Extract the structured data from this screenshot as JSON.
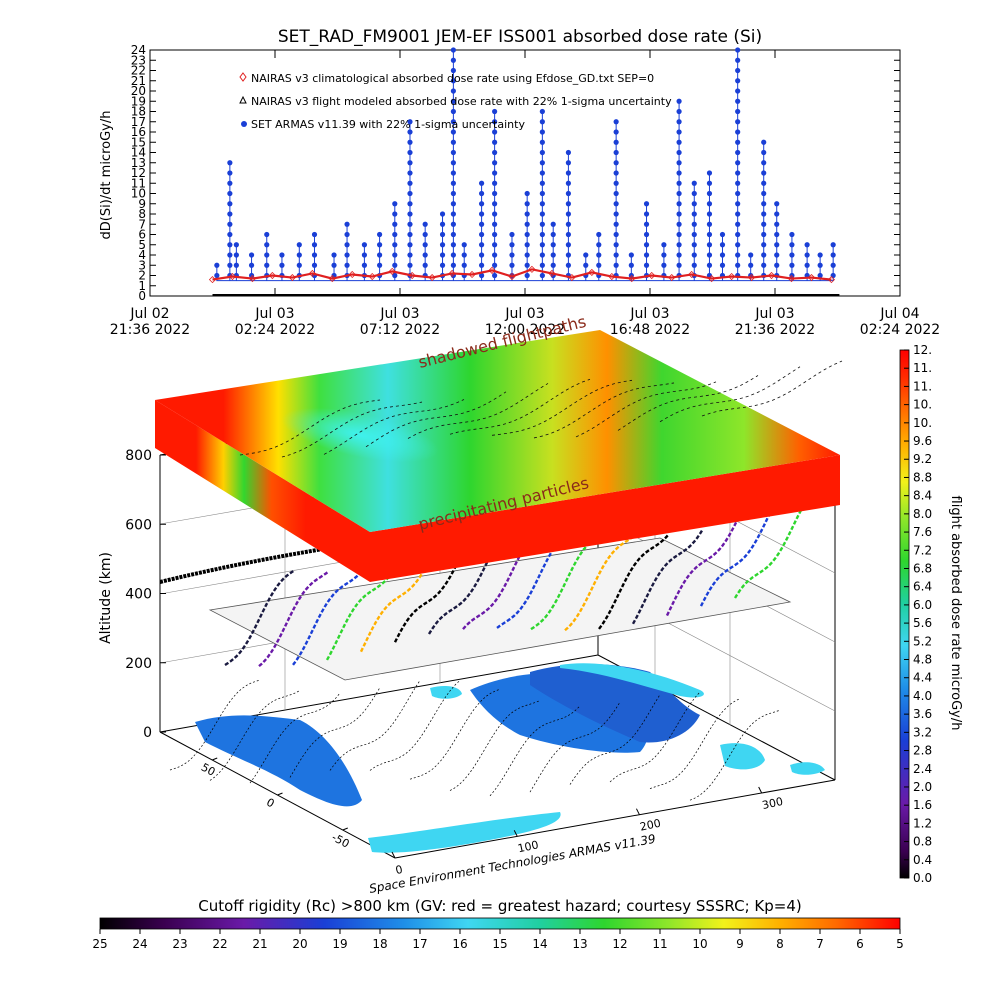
{
  "chart_data": [
    {
      "type": "line",
      "title": "SET_RAD_FM9001  JEM-EF ISS001 absorbed dose rate (Si)",
      "ylabel": "dD(Si)/dt microGy/h",
      "ylim": [
        0,
        24
      ],
      "y_ticks": [
        0,
        1,
        2,
        3,
        4,
        5,
        6,
        7,
        8,
        9,
        10,
        11,
        12,
        13,
        14,
        15,
        16,
        17,
        18,
        19,
        20,
        21,
        22,
        23,
        24
      ],
      "xlim": [
        "2022-07-02T21:36",
        "2022-07-04T02:24"
      ],
      "x_ticks": [
        {
          "t": "2022-07-02T21:36",
          "line1": "Jul 02",
          "line2": "21:36 2022"
        },
        {
          "t": "2022-07-03T02:24",
          "line1": "Jul 03",
          "line2": "02:24 2022"
        },
        {
          "t": "2022-07-03T07:12",
          "line1": "Jul 03",
          "line2": "07:12 2022"
        },
        {
          "t": "2022-07-03T12:00",
          "line1": "Jul 03",
          "line2": "12:00 2022"
        },
        {
          "t": "2022-07-03T16:48",
          "line1": "Jul 03",
          "line2": "16:48 2022"
        },
        {
          "t": "2022-07-03T21:36",
          "line1": "Jul 03",
          "line2": "21:36 2022"
        },
        {
          "t": "2022-07-04T02:24",
          "line1": "Jul 04",
          "line2": "02:24 2022"
        }
      ],
      "legend": [
        {
          "text": "NAIRAS v3 climatological absorbed dose rate using Efdose_GD.txt SEP=0",
          "color": "#e02020",
          "marker": "diamond"
        },
        {
          "text": "NAIRAS v3 flight modeled absorbed dose rate with 22% 1-sigma uncertainty",
          "color": "#000000",
          "marker": "triangle"
        },
        {
          "text": "SET ARMAS v11.39 with 22% 1-sigma uncertainty",
          "color": "#1a3fd6",
          "marker": "dot"
        }
      ],
      "legend_position": "top-left",
      "series": [
        {
          "color": "#e02020",
          "x": [
            "2022-07-03T00:00",
            "2022-07-03T00:46",
            "2022-07-03T01:32",
            "2022-07-03T02:18",
            "2022-07-03T03:04",
            "2022-07-03T03:50",
            "2022-07-03T04:36",
            "2022-07-03T05:22",
            "2022-07-03T06:08",
            "2022-07-03T06:54",
            "2022-07-03T07:40",
            "2022-07-03T08:26",
            "2022-07-03T09:12",
            "2022-07-03T09:58",
            "2022-07-03T10:44",
            "2022-07-03T11:30",
            "2022-07-03T12:16",
            "2022-07-03T13:02",
            "2022-07-03T13:48",
            "2022-07-03T14:34",
            "2022-07-03T15:20",
            "2022-07-03T16:06",
            "2022-07-03T16:52",
            "2022-07-03T17:38",
            "2022-07-03T18:24",
            "2022-07-03T19:10",
            "2022-07-03T19:56",
            "2022-07-03T20:42",
            "2022-07-03T21:28",
            "2022-07-03T22:14",
            "2022-07-03T23:00",
            "2022-07-03T23:46"
          ],
          "values": [
            1.6,
            1.9,
            1.7,
            2.0,
            1.8,
            2.2,
            1.7,
            2.1,
            1.9,
            2.4,
            2.0,
            1.8,
            2.2,
            2.1,
            2.5,
            1.9,
            2.6,
            2.2,
            1.8,
            2.3,
            1.9,
            1.7,
            2.0,
            1.8,
            2.1,
            1.7,
            1.9,
            1.8,
            2.0,
            1.7,
            1.8,
            1.6
          ]
        },
        {
          "color": "#1a3fd6",
          "x": [
            "2022-07-03T00:10",
            "2022-07-03T00:40",
            "2022-07-03T00:55",
            "2022-07-03T01:30",
            "2022-07-03T02:05",
            "2022-07-03T02:40",
            "2022-07-03T03:20",
            "2022-07-03T03:55",
            "2022-07-03T04:40",
            "2022-07-03T05:10",
            "2022-07-03T05:50",
            "2022-07-03T06:25",
            "2022-07-03T07:00",
            "2022-07-03T07:35",
            "2022-07-03T08:10",
            "2022-07-03T08:50",
            "2022-07-03T09:15",
            "2022-07-03T09:40",
            "2022-07-03T10:20",
            "2022-07-03T10:50",
            "2022-07-03T11:30",
            "2022-07-03T12:05",
            "2022-07-03T12:40",
            "2022-07-03T13:05",
            "2022-07-03T13:40",
            "2022-07-03T14:20",
            "2022-07-03T14:50",
            "2022-07-03T15:30",
            "2022-07-03T16:05",
            "2022-07-03T16:40",
            "2022-07-03T17:20",
            "2022-07-03T17:55",
            "2022-07-03T18:30",
            "2022-07-03T19:05",
            "2022-07-03T19:35",
            "2022-07-03T20:10",
            "2022-07-03T20:40",
            "2022-07-03T21:10",
            "2022-07-03T21:40",
            "2022-07-03T22:15",
            "2022-07-03T22:50",
            "2022-07-03T23:20",
            "2022-07-03T23:50"
          ],
          "values": [
            3,
            13,
            5,
            4,
            6,
            4,
            5,
            6,
            4,
            7,
            5,
            6,
            9,
            17,
            7,
            8,
            24,
            5,
            11,
            18,
            6,
            10,
            18,
            7,
            14,
            4,
            6,
            17,
            4,
            9,
            5,
            19,
            11,
            12,
            6,
            24,
            4,
            15,
            9,
            6,
            5,
            4,
            5
          ]
        }
      ]
    },
    {
      "type": "scatter",
      "zlabel": "Altitude (km)",
      "z_ticks": [
        0,
        200,
        400,
        600,
        800
      ],
      "x_ticks": [
        0,
        100,
        200,
        300
      ],
      "y_ticks": [
        -50,
        0,
        50
      ],
      "surface_labels": [
        "shadowed flightpaths",
        "precipitating particles"
      ],
      "colorbar_right": {
        "label": "flight absorbed dose rate microGy/h",
        "ticks": [
          "0.0",
          "0.4",
          "0.8",
          "1.2",
          "1.6",
          "2.0",
          "2.4",
          "2.8",
          "3.2",
          "3.6",
          "4.0",
          "4.4",
          "4.8",
          "5.2",
          "5.6",
          "6.0",
          "6.4",
          "6.8",
          "7.2",
          "7.6",
          "8.0",
          "8.4",
          "8.8",
          "9.2",
          "9.6",
          "10.",
          "10.",
          "11.",
          "11.",
          "12."
        ]
      },
      "colorbar_bottom": {
        "label": "Cutoff rigidity (Rc) >800 km (GV: red = greatest hazard; courtesy SSSRC; Kp=4)",
        "ticks": [
          "25",
          "24",
          "23",
          "22",
          "21",
          "20",
          "19",
          "18",
          "17",
          "16",
          "15",
          "14",
          "13",
          "12",
          "11",
          "10",
          "9",
          "8",
          "7",
          "6",
          "5"
        ]
      },
      "credit": "Space Environment Technologies ARMAS v11.39"
    }
  ],
  "colors": {
    "axis": "#000000",
    "series_blue": "#1a3fd6",
    "series_red": "#e02020",
    "land": "#1e74e0",
    "ocean_ice": "#3fd6f2",
    "hazard_red": "#ff1a00",
    "rc_green": "#33d62e"
  }
}
